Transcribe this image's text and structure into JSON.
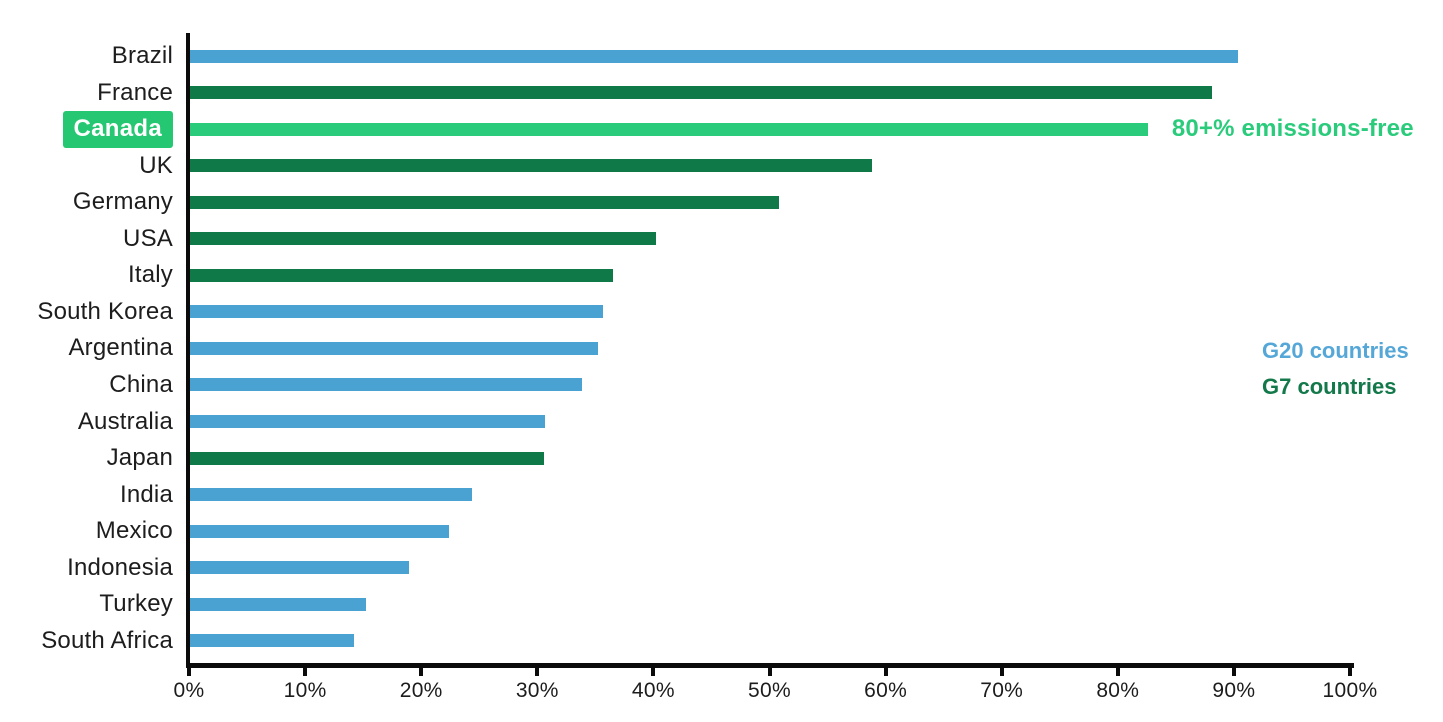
{
  "chart_data": {
    "type": "bar",
    "orientation": "horizontal",
    "title": "",
    "xlabel": "",
    "ylabel": "",
    "unit": "%",
    "xlim": [
      0,
      100
    ],
    "x_ticks": [
      "0%",
      "10%",
      "20%",
      "30%",
      "40%",
      "50%",
      "60%",
      "70%",
      "80%",
      "90%",
      "100%"
    ],
    "grid": false,
    "highlighted_category": "Canada",
    "annotation": {
      "text": "80+% emissions-free",
      "attached_to": "Canada"
    },
    "legend": {
      "position": "right",
      "entries": [
        {
          "label": "G20 countries",
          "color": "#55A7D8"
        },
        {
          "label": "G7 countries",
          "color": "#13794A"
        }
      ]
    },
    "colors": {
      "g20_bar": "#4AA2D3",
      "g7_bar": "#0F7A47",
      "highlight_bar": "#2BCB7C",
      "highlight_badge": "#26C772",
      "annotation_text": "#2BCB7C",
      "axis": "#0B0B0B",
      "label_text": "#1D1D1D"
    },
    "series": [
      {
        "label": "Brazil",
        "value": 90.3,
        "group": "G20"
      },
      {
        "label": "France",
        "value": 88.0,
        "group": "G7"
      },
      {
        "label": "Canada",
        "value": 82.5,
        "group": "G7-highlight"
      },
      {
        "label": "UK",
        "value": 58.7,
        "group": "G7"
      },
      {
        "label": "Germany",
        "value": 50.7,
        "group": "G7"
      },
      {
        "label": "USA",
        "value": 40.1,
        "group": "G7"
      },
      {
        "label": "Italy",
        "value": 36.4,
        "group": "G7"
      },
      {
        "label": "South Korea",
        "value": 35.6,
        "group": "G20"
      },
      {
        "label": "Argentina",
        "value": 35.1,
        "group": "G20"
      },
      {
        "label": "China",
        "value": 33.8,
        "group": "G20"
      },
      {
        "label": "Australia",
        "value": 30.6,
        "group": "G20"
      },
      {
        "label": "Japan",
        "value": 30.5,
        "group": "G7"
      },
      {
        "label": "India",
        "value": 24.3,
        "group": "G20"
      },
      {
        "label": "Mexico",
        "value": 22.3,
        "group": "G20"
      },
      {
        "label": "Indonesia",
        "value": 18.9,
        "group": "G20"
      },
      {
        "label": "Turkey",
        "value": 15.2,
        "group": "G20"
      },
      {
        "label": "South Africa",
        "value": 14.1,
        "group": "G20"
      }
    ]
  }
}
